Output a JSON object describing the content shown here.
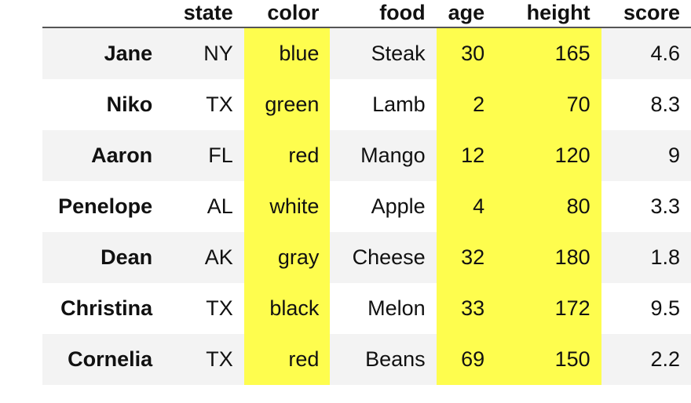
{
  "table": {
    "headers": [
      "",
      "state",
      "color",
      "food",
      "age",
      "height",
      "score"
    ],
    "highlight_color": "#fefd4e",
    "highlighted_columns": [
      "color",
      "age",
      "height"
    ],
    "rows": [
      {
        "name": "Jane",
        "state": "NY",
        "color": "blue",
        "food": "Steak",
        "age": "30",
        "height": "165",
        "score": "4.6"
      },
      {
        "name": "Niko",
        "state": "TX",
        "color": "green",
        "food": "Lamb",
        "age": "2",
        "height": "70",
        "score": "8.3"
      },
      {
        "name": "Aaron",
        "state": "FL",
        "color": "red",
        "food": "Mango",
        "age": "12",
        "height": "120",
        "score": "9"
      },
      {
        "name": "Penelope",
        "state": "AL",
        "color": "white",
        "food": "Apple",
        "age": "4",
        "height": "80",
        "score": "3.3"
      },
      {
        "name": "Dean",
        "state": "AK",
        "color": "gray",
        "food": "Cheese",
        "age": "32",
        "height": "180",
        "score": "1.8"
      },
      {
        "name": "Christina",
        "state": "TX",
        "color": "black",
        "food": "Melon",
        "age": "33",
        "height": "172",
        "score": "9.5"
      },
      {
        "name": "Cornelia",
        "state": "TX",
        "color": "red",
        "food": "Beans",
        "age": "69",
        "height": "150",
        "score": "2.2"
      }
    ]
  }
}
